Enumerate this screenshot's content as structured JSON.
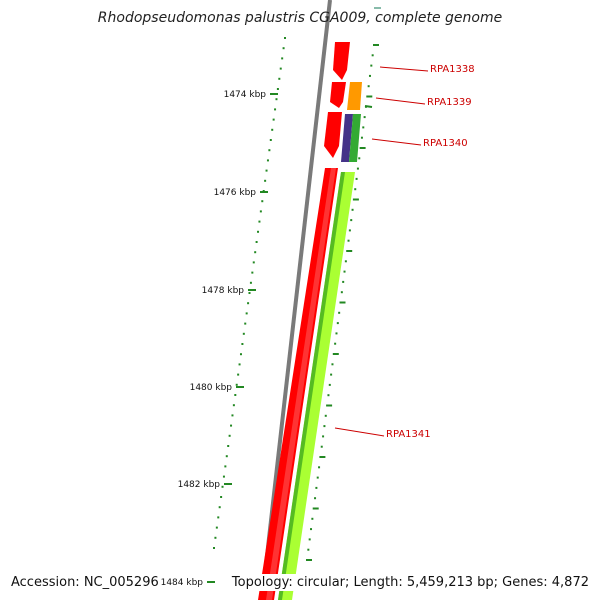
{
  "title": "Rhodopseudomonas palustris CGA009, complete genome",
  "accession_text": "Accession: NC_005296",
  "topology_text": "Topology: circular; Length: 5,459,213 bp; Genes: 4,872",
  "colors": {
    "backbone": "#7a7a7a",
    "forward_gene": "#ff0000",
    "reverse_gene_green": "#aaff33",
    "dark_green": "#33aa33",
    "orange_gene": "#ff9900",
    "purple_gene": "#443388",
    "tick": "#228822",
    "label": "#cc0000"
  },
  "scale_labels": [
    {
      "kbp": 1474,
      "text": "1474 kbp"
    },
    {
      "kbp": 1476,
      "text": "1476 kbp"
    },
    {
      "kbp": 1478,
      "text": "1478 kbp"
    },
    {
      "kbp": 1480,
      "text": "1480 kbp"
    },
    {
      "kbp": 1482,
      "text": "1482 kbp"
    },
    {
      "kbp": 1484,
      "text": "1484 kbp"
    }
  ],
  "genes": [
    {
      "id": "RPA1338",
      "label": "RPA1338",
      "strand": "forward",
      "color": "forward_gene"
    },
    {
      "id": "RPA1339",
      "label": "RPA1339",
      "strand": "forward",
      "color": "forward_gene"
    },
    {
      "id": "RPA1340",
      "label": "RPA1340",
      "strand": "forward",
      "color": "forward_gene"
    },
    {
      "id": "RPA1341",
      "label": "RPA1341",
      "strand": "reverse",
      "color": "reverse_gene_green"
    }
  ]
}
